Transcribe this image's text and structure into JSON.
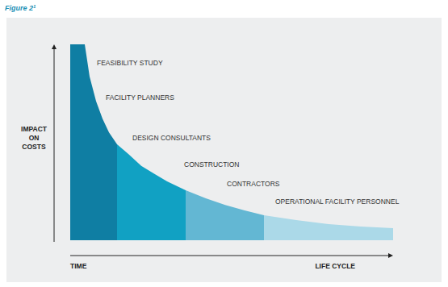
{
  "chart_data": {
    "type": "area",
    "title": "Figure 2",
    "title_note": "1",
    "ylabel": "IMPACT ON COSTS",
    "xlabel": "TIME",
    "xlabel_end": "LIFE CYCLE",
    "annotations": [
      "FEASIBILITY STUDY",
      "FACILITY PLANNERS",
      "DESIGN CONSULTANTS",
      "CONSTRUCTION",
      "CONTRACTORS",
      "OPERATIONAL FACILITY PERSONNEL"
    ],
    "x": [
      0,
      4.5,
      6,
      8,
      10,
      12,
      14.5,
      18,
      22,
      26,
      30,
      35.75,
      42,
      48,
      54,
      60,
      70,
      80,
      90,
      100
    ],
    "xlim": [
      0,
      100
    ],
    "ylim": [
      0,
      100
    ],
    "tick_labels": false,
    "grid": false,
    "series": [
      {
        "color": "#0f7ea3",
        "values": [
          100,
          100,
          83.5,
          71,
          62,
          55,
          49,
          null,
          null,
          null,
          null,
          null,
          null,
          null,
          null,
          null,
          null,
          null,
          null,
          null
        ]
      },
      {
        "color": "#11a1c3",
        "values": [
          null,
          null,
          null,
          null,
          null,
          null,
          49,
          44,
          38,
          34,
          30,
          25.5,
          null,
          null,
          null,
          null,
          null,
          null,
          null,
          null
        ]
      },
      {
        "color": "#63b7d3",
        "values": [
          null,
          null,
          null,
          null,
          null,
          null,
          null,
          null,
          null,
          null,
          null,
          25.5,
          21.4,
          18,
          15.2,
          12.8,
          null,
          null,
          null,
          null
        ]
      },
      {
        "color": "#abd9e8",
        "values": [
          null,
          null,
          null,
          null,
          null,
          null,
          null,
          null,
          null,
          null,
          null,
          null,
          null,
          null,
          null,
          12.8,
          10.3,
          8.2,
          7,
          6.2
        ]
      }
    ]
  }
}
